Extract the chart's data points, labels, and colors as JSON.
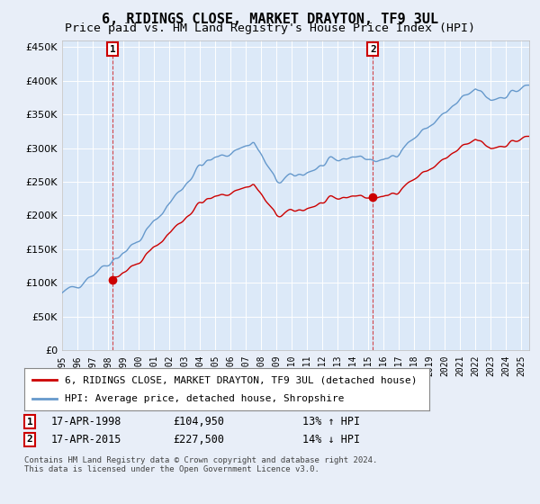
{
  "title": "6, RIDINGS CLOSE, MARKET DRAYTON, TF9 3UL",
  "subtitle": "Price paid vs. HM Land Registry's House Price Index (HPI)",
  "background_color": "#e8eef8",
  "plot_bg_color": "#dce9f8",
  "legend_line1": "6, RIDINGS CLOSE, MARKET DRAYTON, TF9 3UL (detached house)",
  "legend_line2": "HPI: Average price, detached house, Shropshire",
  "sale1_date": "17-APR-1998",
  "sale1_price": "£104,950",
  "sale1_hpi": "13% ↑ HPI",
  "sale1_year": 1998.29,
  "sale1_value": 104950,
  "sale2_date": "17-APR-2015",
  "sale2_price": "£227,500",
  "sale2_hpi": "14% ↓ HPI",
  "sale2_year": 2015.29,
  "sale2_value": 227500,
  "copyright": "Contains HM Land Registry data © Crown copyright and database right 2024.\nThis data is licensed under the Open Government Licence v3.0.",
  "ylim": [
    0,
    460000
  ],
  "xlim_start": 1995.0,
  "xlim_end": 2025.5,
  "hpi_color": "#6699cc",
  "price_color": "#cc0000",
  "vline_color": "#cc0000",
  "grid_color": "#ffffff",
  "title_fontsize": 11,
  "subtitle_fontsize": 9.5
}
